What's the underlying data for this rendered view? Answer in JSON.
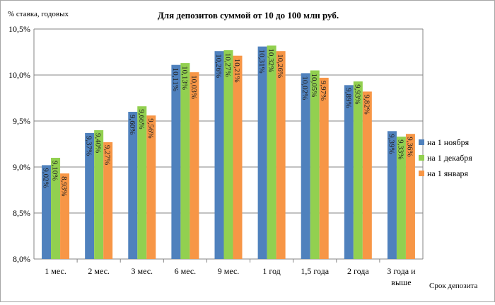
{
  "chart_data": {
    "type": "bar",
    "title": "Для депозитов суммой от 10 до 100 млн руб.",
    "ylabel": "% ставка, годовых",
    "xlabel": "Срок депозита",
    "ylim": [
      8.0,
      10.5
    ],
    "yticks": [
      8.0,
      8.5,
      9.0,
      9.5,
      10.0,
      10.5
    ],
    "ytick_labels": [
      "8,0%",
      "8,5%",
      "9,0%",
      "9,5%",
      "10,0%",
      "10,5%"
    ],
    "grid": true,
    "legend_position": "right",
    "categories": [
      [
        "1 мес."
      ],
      [
        "2 мес."
      ],
      [
        "3 мес."
      ],
      [
        "6 мес."
      ],
      [
        "9 мес."
      ],
      [
        "1 год"
      ],
      [
        "1,5 года"
      ],
      [
        "2 года"
      ],
      [
        "3 года и",
        "выше"
      ]
    ],
    "series": [
      {
        "name": "на 1 ноября",
        "color": "#4f81bd",
        "values": [
          9.02,
          9.37,
          9.6,
          10.11,
          10.26,
          10.31,
          10.02,
          9.89,
          9.39
        ],
        "labels": [
          "9,02%",
          "9,37%",
          "9,60%",
          "10,11%",
          "10,26%",
          "10,31%",
          "10,02%",
          "9,89%",
          "9,39%"
        ]
      },
      {
        "name": "на 1 декабря",
        "color": "#92d050",
        "values": [
          9.1,
          9.4,
          9.66,
          10.13,
          10.27,
          10.32,
          10.05,
          9.93,
          9.33
        ],
        "labels": [
          "9,10%",
          "9,40%",
          "9,66%",
          "10,13%",
          "10,27%",
          "10,32%",
          "10,05%",
          "9,93%",
          "9,33%"
        ]
      },
      {
        "name": "на 1 января",
        "color": "#f79646",
        "values": [
          8.93,
          9.27,
          9.56,
          10.03,
          10.21,
          10.26,
          9.97,
          9.82,
          9.36
        ],
        "labels": [
          "8,93%",
          "9,27%",
          "9,56%",
          "10,03%",
          "10,21%",
          "10,26%",
          "9,97%",
          "9,82%",
          "9,36%"
        ]
      }
    ]
  }
}
